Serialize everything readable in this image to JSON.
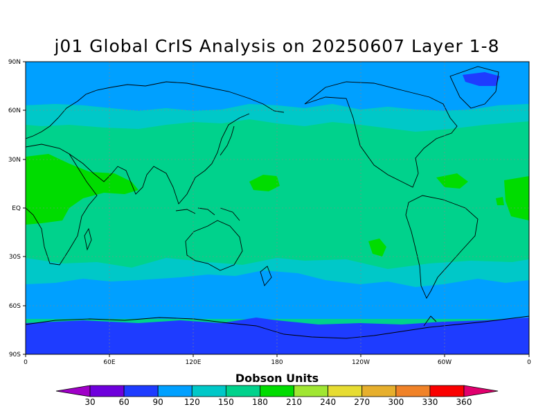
{
  "title": "j01 Global CrIS Analysis on 20250607 Layer 1-8",
  "colorbar": {
    "title": "Dobson Units",
    "labels": [
      "30",
      "60",
      "90",
      "120",
      "150",
      "180",
      "210",
      "240",
      "270",
      "300",
      "330",
      "360"
    ],
    "colors": [
      "#a000c8",
      "#6e00dc",
      "#1e3cff",
      "#00a0ff",
      "#00c8c8",
      "#00d28c",
      "#00dc00",
      "#a0e632",
      "#e6dc32",
      "#e6af2d",
      "#f08228",
      "#fa0000",
      "#e0006e"
    ]
  },
  "axes": {
    "lat_labels": [
      "90N",
      "60N",
      "30N",
      "EQ",
      "30S",
      "60S",
      "90S"
    ],
    "lon_labels": [
      "0",
      "60E",
      "120E",
      "180",
      "120W",
      "60W",
      "0"
    ]
  },
  "map": {
    "background_color": "#00d28c",
    "zone_colors": {
      "dobson_60": "#1e3cff",
      "dobson_90": "#00a0ff",
      "dobson_150": "#00c8c8",
      "dobson_180": "#00d28c",
      "dobson_210": "#00dc00"
    }
  }
}
